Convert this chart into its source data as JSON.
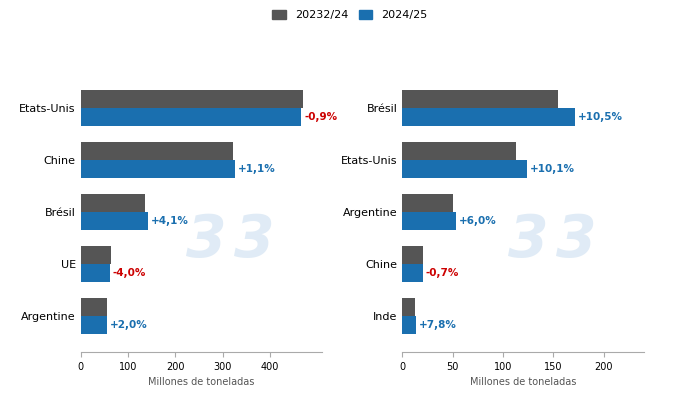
{
  "legend_labels": [
    "20232/24",
    "2024/25"
  ],
  "legend_colors": [
    "#555555",
    "#1a6faf"
  ],
  "maize": {
    "categories": [
      "Argentine",
      "UE",
      "Brésil",
      "Chine",
      "Etats-Unis"
    ],
    "values_2324": [
      55,
      65,
      137,
      322,
      470
    ],
    "values_2425": [
      56,
      62,
      143,
      326,
      466
    ],
    "labels": [
      "+2,0%",
      "-4,0%",
      "+4,1%",
      "+1,1%",
      "-0,9%"
    ],
    "label_colors": [
      "#1a6faf",
      "#cc0000",
      "#1a6faf",
      "#1a6faf",
      "#cc0000"
    ],
    "xlabel": "Millones de toneladas",
    "xlim": [
      0,
      510
    ],
    "xticks": [
      0,
      100,
      200,
      300,
      400
    ]
  },
  "soja": {
    "categories": [
      "Inde",
      "Chine",
      "Argentine",
      "Etats-Unis",
      "Brésil"
    ],
    "values_2324": [
      12,
      20,
      50,
      113,
      155
    ],
    "values_2425": [
      13,
      20,
      53,
      124,
      171
    ],
    "labels": [
      "+7,8%",
      "-0,7%",
      "+6,0%",
      "+10,1%",
      "+10,5%"
    ],
    "label_colors": [
      "#1a6faf",
      "#cc0000",
      "#1a6faf",
      "#1a6faf",
      "#1a6faf"
    ],
    "xlabel": "Millones de toneladas",
    "xlim": [
      0,
      240
    ],
    "xticks": [
      0,
      50,
      100,
      150,
      200
    ]
  },
  "color_2324": "#555555",
  "color_2425": "#1a6faf",
  "bg_color": "#ffffff",
  "bar_height": 0.35
}
